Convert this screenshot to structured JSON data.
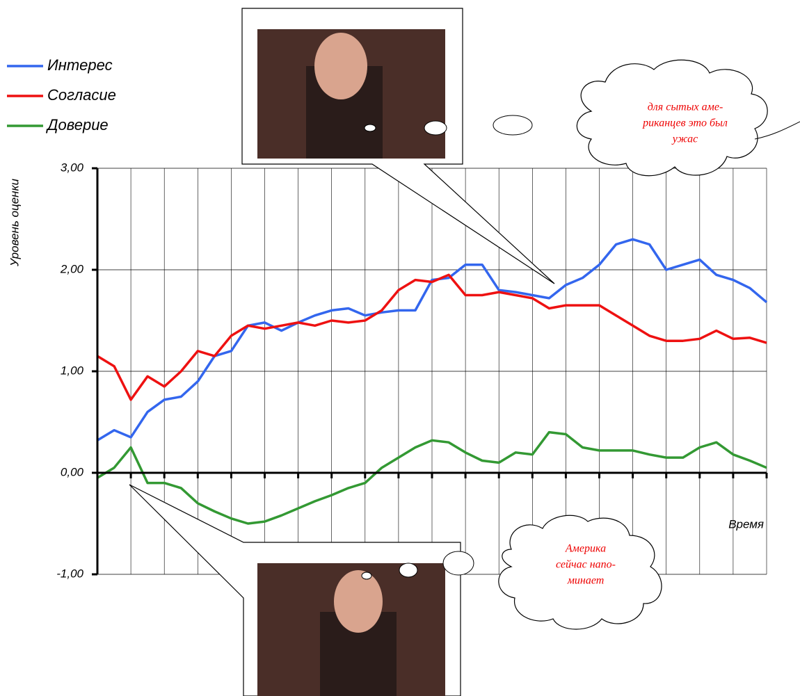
{
  "chart_data": {
    "type": "line",
    "y_label": "Уровень оценки",
    "x_label": "Время",
    "x": [
      0,
      0.5,
      1,
      1.5,
      2,
      2.5,
      3,
      3.5,
      4,
      4.5,
      5,
      5.5,
      6,
      6.5,
      7,
      7.5,
      8,
      8.5,
      9,
      9.5,
      10,
      10.5,
      11,
      11.5,
      12,
      12.5,
      13,
      13.5,
      14,
      14.5,
      15,
      15.5,
      16,
      16.5,
      17,
      17.5,
      18,
      18.5,
      19,
      19.5,
      20
    ],
    "series": [
      {
        "name": "Интерес",
        "color": "#3366ee",
        "values": [
          0.32,
          0.42,
          0.35,
          0.6,
          0.72,
          0.75,
          0.9,
          1.15,
          1.2,
          1.45,
          1.48,
          1.4,
          1.48,
          1.55,
          1.6,
          1.62,
          1.55,
          1.58,
          1.6,
          1.6,
          1.9,
          1.92,
          2.05,
          2.05,
          1.8,
          1.78,
          1.75,
          1.72,
          1.85,
          1.92,
          2.05,
          2.25,
          2.3,
          2.25,
          2.0,
          2.05,
          2.1,
          1.95,
          1.9,
          1.82,
          1.68
        ]
      },
      {
        "name": "Согласие",
        "color": "#ee1111",
        "values": [
          1.15,
          1.05,
          0.72,
          0.95,
          0.85,
          1.0,
          1.2,
          1.15,
          1.35,
          1.45,
          1.42,
          1.45,
          1.48,
          1.45,
          1.5,
          1.48,
          1.5,
          1.6,
          1.8,
          1.9,
          1.88,
          1.95,
          1.75,
          1.75,
          1.78,
          1.75,
          1.72,
          1.62,
          1.65,
          1.65,
          1.65,
          1.55,
          1.45,
          1.35,
          1.3,
          1.3,
          1.32,
          1.4,
          1.32,
          1.33,
          1.28
        ]
      },
      {
        "name": "Доверие",
        "color": "#339933",
        "values": [
          -0.05,
          0.05,
          0.25,
          -0.1,
          -0.1,
          -0.15,
          -0.3,
          -0.38,
          -0.45,
          -0.5,
          -0.48,
          -0.42,
          -0.35,
          -0.28,
          -0.22,
          -0.15,
          -0.1,
          0.05,
          0.15,
          0.25,
          0.32,
          0.3,
          0.2,
          0.12,
          0.1,
          0.2,
          0.18,
          0.4,
          0.38,
          0.25,
          0.22,
          0.22,
          0.22,
          0.18,
          0.15,
          0.15,
          0.25,
          0.3,
          0.18,
          0.12,
          0.05
        ]
      }
    ],
    "xlim": [
      0,
      20
    ],
    "xticks": [
      0,
      1,
      2,
      3,
      4,
      5,
      6,
      7,
      8,
      9,
      10,
      11,
      12,
      13,
      14,
      15,
      16,
      17,
      18,
      19,
      20
    ],
    "ylim": [
      -1,
      3
    ],
    "yticks": [
      {
        "value": -1,
        "label": "-1,00"
      },
      {
        "value": 0,
        "label": "0,00"
      },
      {
        "value": 1,
        "label": "1,00"
      },
      {
        "value": 2,
        "label": "2,00"
      },
      {
        "value": 3,
        "label": "3,00"
      }
    ],
    "grid": true,
    "annotations": [
      {
        "lines": [
          "для сытых аме-",
          "риканцев это был",
          "ужас"
        ]
      },
      {
        "lines": [
          "Америка",
          "сейчас напо-",
          "минает"
        ]
      }
    ]
  }
}
